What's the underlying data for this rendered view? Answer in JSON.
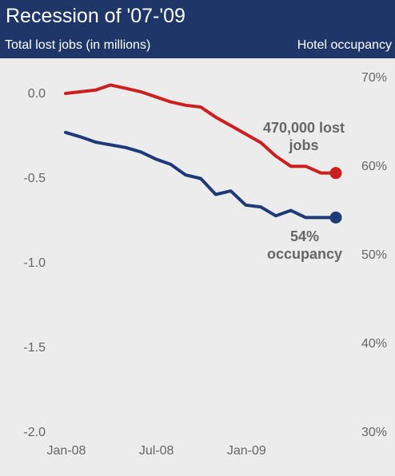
{
  "chart_data": {
    "type": "line",
    "title": "Recession of '07-'09",
    "ylabel": "Total lost jobs (in millions)",
    "y2label": "Hotel occupancy",
    "x_ticks": [
      "Jan-08",
      "Jul-08",
      "Jan-09"
    ],
    "y_ticks": [
      "0.0",
      "-0.5",
      "-1.0",
      "-1.5",
      "-2.0"
    ],
    "y2_ticks": [
      "70%",
      "60%",
      "50%",
      "40%",
      "30%"
    ],
    "ylim": [
      -2.0,
      0.0
    ],
    "y2lim": [
      30,
      70
    ],
    "x": [
      "Jan-08",
      "Feb-08",
      "Mar-08",
      "Apr-08",
      "May-08",
      "Jun-08",
      "Jul-08",
      "Aug-08",
      "Sep-08",
      "Oct-08",
      "Nov-08",
      "Dec-08",
      "Jan-09",
      "Feb-09",
      "Mar-09",
      "Apr-09",
      "May-09",
      "Jun-09",
      "Jul-09"
    ],
    "series": [
      {
        "name": "Total lost jobs",
        "axis": "left",
        "color": "#cc1f1f",
        "values": [
          0.0,
          0.01,
          0.02,
          0.05,
          0.03,
          0.01,
          -0.02,
          -0.05,
          -0.07,
          -0.08,
          -0.14,
          -0.19,
          -0.24,
          -0.29,
          -0.37,
          -0.43,
          -0.43,
          -0.47,
          -0.47
        ]
      },
      {
        "name": "Hotel occupancy",
        "axis": "right",
        "color": "#1f3a78",
        "values": [
          63.8,
          63.3,
          62.7,
          62.4,
          62.1,
          61.6,
          60.8,
          60.2,
          59.0,
          58.6,
          56.8,
          57.2,
          55.6,
          55.4,
          54.4,
          55.0,
          54.2,
          54.2,
          54.2
        ]
      }
    ],
    "annotations": [
      {
        "series": 0,
        "lines": [
          "470,000 lost",
          "jobs"
        ]
      },
      {
        "series": 1,
        "lines": [
          "54%",
          "occupancy"
        ]
      }
    ]
  }
}
